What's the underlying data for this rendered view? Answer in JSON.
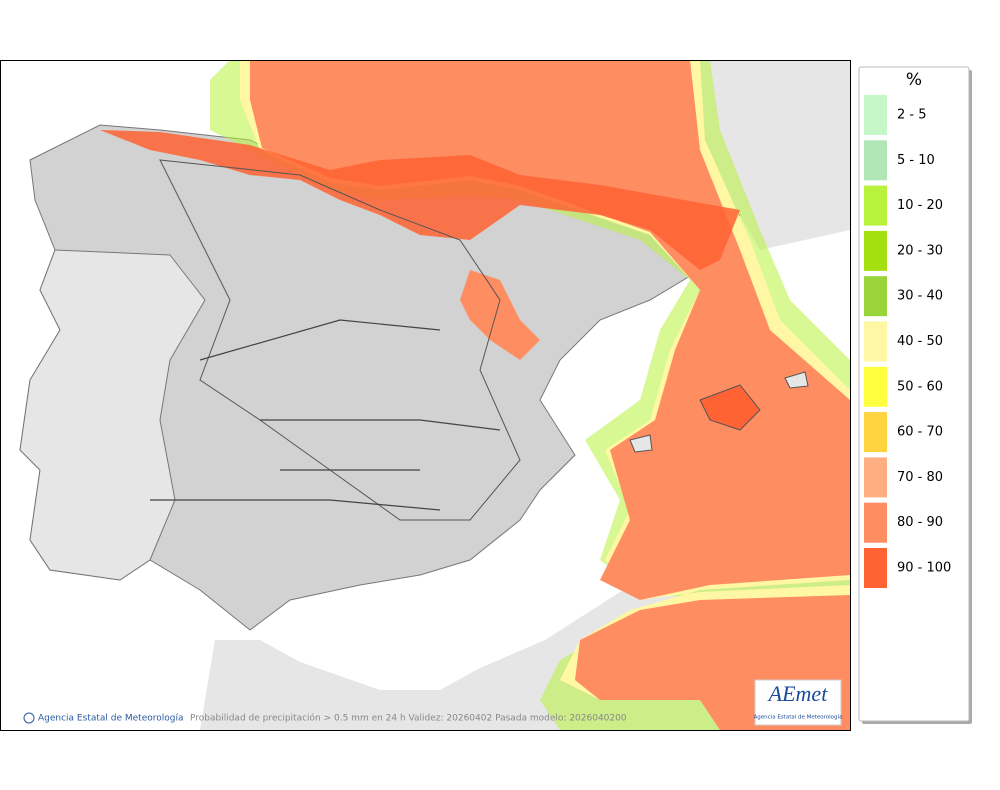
{
  "map": {
    "footer_left": "Agencia Estatal de Meteorología",
    "footer_caption": "Probabilidad de precipitación > 0.5 mm en 24 h Validez: 20260402 Pasada modelo: 2026040200",
    "logo": "AEmet",
    "logo_subtitle": "Agencia Estatal de Meteorología"
  },
  "legend": {
    "title": "%",
    "items": [
      {
        "label": "2 - 5",
        "color": "#c5f7c8"
      },
      {
        "label": "5 - 10",
        "color": "#b1e6b6"
      },
      {
        "label": "10 - 20",
        "color": "#b8f23c"
      },
      {
        "label": "20 - 30",
        "color": "#a3e00e"
      },
      {
        "label": "30 - 40",
        "color": "#99d43a"
      },
      {
        "label": "40 - 50",
        "color": "#fff7a3"
      },
      {
        "label": "50 - 60",
        "color": "#ffff40"
      },
      {
        "label": "60 - 70",
        "color": "#ffd23f"
      },
      {
        "label": "70 - 80",
        "color": "#ffae82"
      },
      {
        "label": "80 - 90",
        "color": "#ff8d62"
      },
      {
        "label": "90 - 100",
        "color": "#ff6233"
      }
    ]
  }
}
